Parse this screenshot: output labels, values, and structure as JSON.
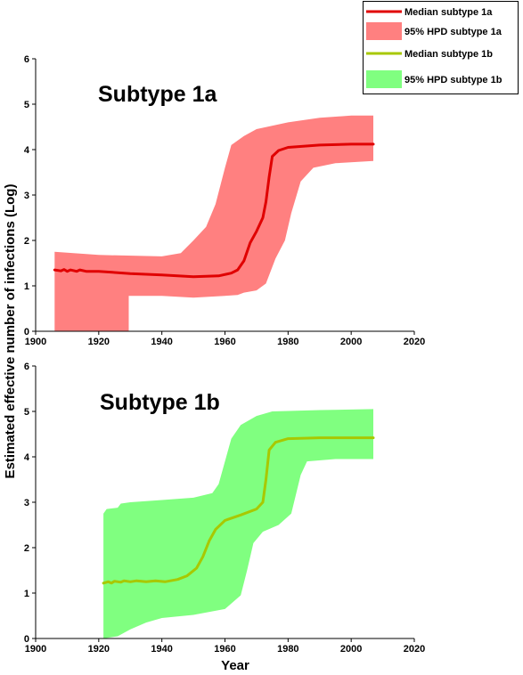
{
  "figure": {
    "ylabel": "Estimated effective number of infections (Log)",
    "xlabel": "Year"
  },
  "legend": {
    "position": "top-right",
    "entries": [
      {
        "label": "Median subtype 1a",
        "kind": "line",
        "color": "#e00000"
      },
      {
        "label": "95% HPD subtype 1a",
        "kind": "area",
        "color": "#ff8080"
      },
      {
        "label": "Median subtype 1b",
        "kind": "line",
        "color": "#a8c800"
      },
      {
        "label": "95% HPD subtype 1b",
        "kind": "area",
        "color": "#80ff80"
      }
    ]
  },
  "chart_data": [
    {
      "type": "area",
      "title": "Subtype 1a",
      "xlim": [
        1900,
        2020
      ],
      "ylim": [
        0,
        6
      ],
      "xticks": [
        1900,
        1920,
        1940,
        1960,
        1980,
        2000,
        2020
      ],
      "yticks": [
        0,
        1,
        2,
        3,
        4,
        5,
        6
      ],
      "grid": false,
      "series": [
        {
          "name": "95% HPD subtype 1a",
          "kind": "band",
          "color": "#ff8080",
          "upper": [
            [
              1906,
              1.75
            ],
            [
              1920,
              1.68
            ],
            [
              1940,
              1.65
            ],
            [
              1946,
              1.72
            ],
            [
              1950,
              2.0
            ],
            [
              1954,
              2.3
            ],
            [
              1957,
              2.8
            ],
            [
              1960,
              3.6
            ],
            [
              1962,
              4.1
            ],
            [
              1966,
              4.3
            ],
            [
              1970,
              4.45
            ],
            [
              1980,
              4.6
            ],
            [
              1990,
              4.7
            ],
            [
              2000,
              4.75
            ],
            [
              2007,
              4.75
            ]
          ],
          "lower": [
            [
              1906,
              0.0
            ],
            [
              1929.5,
              0.0
            ],
            [
              1929.5,
              0.78
            ],
            [
              1940,
              0.78
            ],
            [
              1950,
              0.74
            ],
            [
              1960,
              0.78
            ],
            [
              1964,
              0.8
            ],
            [
              1966,
              0.85
            ],
            [
              1970,
              0.9
            ],
            [
              1973,
              1.05
            ],
            [
              1976,
              1.6
            ],
            [
              1979,
              2.0
            ],
            [
              1981,
              2.6
            ],
            [
              1984,
              3.3
            ],
            [
              1988,
              3.6
            ],
            [
              1995,
              3.7
            ],
            [
              2007,
              3.75
            ]
          ]
        },
        {
          "name": "Median subtype 1a",
          "kind": "line",
          "color": "#e00000",
          "points": [
            [
              1906,
              1.35
            ],
            [
              1908,
              1.33
            ],
            [
              1909,
              1.36
            ],
            [
              1910,
              1.32
            ],
            [
              1911,
              1.35
            ],
            [
              1913,
              1.32
            ],
            [
              1914,
              1.35
            ],
            [
              1916,
              1.32
            ],
            [
              1920,
              1.32
            ],
            [
              1930,
              1.27
            ],
            [
              1940,
              1.24
            ],
            [
              1950,
              1.2
            ],
            [
              1958,
              1.22
            ],
            [
              1962,
              1.28
            ],
            [
              1964,
              1.35
            ],
            [
              1966,
              1.55
            ],
            [
              1968,
              1.95
            ],
            [
              1970,
              2.2
            ],
            [
              1972,
              2.5
            ],
            [
              1973,
              2.85
            ],
            [
              1974,
              3.4
            ],
            [
              1975,
              3.85
            ],
            [
              1977,
              3.98
            ],
            [
              1980,
              4.05
            ],
            [
              1990,
              4.1
            ],
            [
              2000,
              4.12
            ],
            [
              2007,
              4.12
            ]
          ]
        }
      ]
    },
    {
      "type": "area",
      "title": "Subtype 1b",
      "xlim": [
        1900,
        2020
      ],
      "ylim": [
        0,
        6
      ],
      "xticks": [
        1900,
        1920,
        1940,
        1960,
        1980,
        2000,
        2020
      ],
      "yticks": [
        0,
        1,
        2,
        3,
        4,
        5,
        6
      ],
      "grid": false,
      "series": [
        {
          "name": "95% HPD subtype 1b",
          "kind": "band",
          "color": "#80ff80",
          "upper": [
            [
              1921.5,
              2.75
            ],
            [
              1922.5,
              2.85
            ],
            [
              1926,
              2.88
            ],
            [
              1927,
              2.97
            ],
            [
              1930,
              3.0
            ],
            [
              1940,
              3.05
            ],
            [
              1950,
              3.1
            ],
            [
              1956,
              3.2
            ],
            [
              1958,
              3.4
            ],
            [
              1960,
              3.9
            ],
            [
              1962,
              4.4
            ],
            [
              1965,
              4.7
            ],
            [
              1970,
              4.9
            ],
            [
              1975,
              5.0
            ],
            [
              1990,
              5.03
            ],
            [
              2007,
              5.05
            ]
          ],
          "lower": [
            [
              1921.5,
              0.0
            ],
            [
              1926,
              0.05
            ],
            [
              1930,
              0.2
            ],
            [
              1935,
              0.35
            ],
            [
              1940,
              0.45
            ],
            [
              1950,
              0.52
            ],
            [
              1960,
              0.65
            ],
            [
              1965,
              0.95
            ],
            [
              1967,
              1.5
            ],
            [
              1969,
              2.1
            ],
            [
              1972,
              2.35
            ],
            [
              1977,
              2.5
            ],
            [
              1981,
              2.75
            ],
            [
              1984,
              3.6
            ],
            [
              1986,
              3.9
            ],
            [
              1995,
              3.95
            ],
            [
              2007,
              3.95
            ]
          ]
        },
        {
          "name": "Median subtype 1b",
          "kind": "line",
          "color": "#a8c800",
          "points": [
            [
              1921.5,
              1.22
            ],
            [
              1923,
              1.25
            ],
            [
              1924,
              1.22
            ],
            [
              1925,
              1.26
            ],
            [
              1927,
              1.24
            ],
            [
              1928,
              1.27
            ],
            [
              1930,
              1.25
            ],
            [
              1932,
              1.27
            ],
            [
              1935,
              1.25
            ],
            [
              1938,
              1.27
            ],
            [
              1941,
              1.25
            ],
            [
              1945,
              1.3
            ],
            [
              1948,
              1.38
            ],
            [
              1951,
              1.55
            ],
            [
              1953,
              1.8
            ],
            [
              1955,
              2.15
            ],
            [
              1957,
              2.4
            ],
            [
              1960,
              2.6
            ],
            [
              1965,
              2.72
            ],
            [
              1970,
              2.85
            ],
            [
              1972,
              3.0
            ],
            [
              1973,
              3.5
            ],
            [
              1974,
              4.15
            ],
            [
              1976,
              4.32
            ],
            [
              1980,
              4.4
            ],
            [
              1990,
              4.42
            ],
            [
              2007,
              4.42
            ]
          ]
        }
      ]
    }
  ]
}
